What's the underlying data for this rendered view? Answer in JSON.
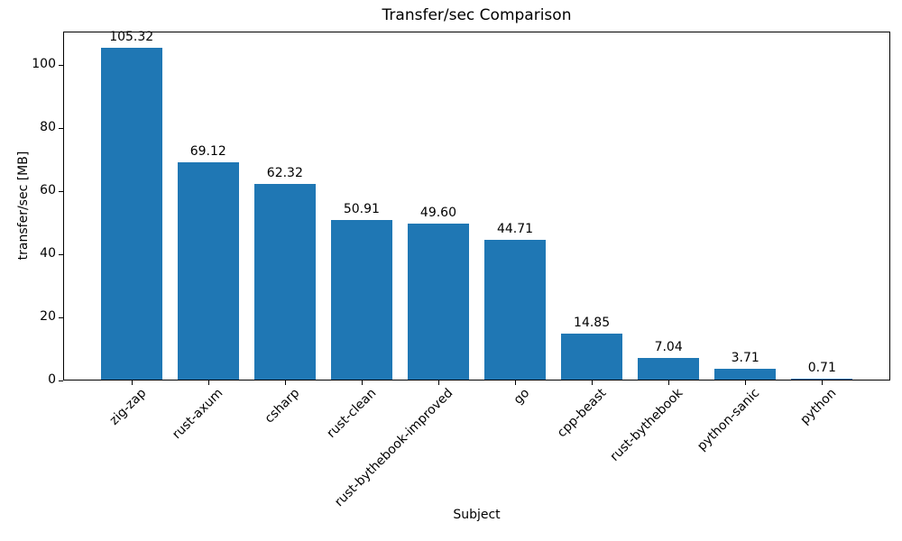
{
  "chart_data": {
    "type": "bar",
    "title": "Transfer/sec Comparison",
    "xlabel": "Subject",
    "ylabel": "transfer/sec [MB]",
    "categories": [
      "zig-zap",
      "rust-axum",
      "csharp",
      "rust-clean",
      "rust-bythebook-improved",
      "go",
      "cpp-beast",
      "rust-bythebook",
      "python-sanic",
      "python"
    ],
    "values": [
      105.32,
      69.12,
      62.32,
      50.91,
      49.6,
      44.71,
      14.85,
      7.04,
      3.71,
      0.71
    ],
    "value_labels": [
      "105.32",
      "69.12",
      "62.32",
      "50.91",
      "49.60",
      "44.71",
      "14.85",
      "7.04",
      "3.71",
      "0.71"
    ],
    "yticks": [
      0,
      20,
      40,
      60,
      80,
      100
    ],
    "ylim": [
      0,
      110.59
    ],
    "bar_color": "#1f77b4",
    "axis_color": "#000000",
    "text_color": "#000000",
    "background_color": "#ffffff",
    "grid": false,
    "legend": "none",
    "bar_width_fraction": 0.8,
    "x_tick_rotation_deg": 45
  }
}
